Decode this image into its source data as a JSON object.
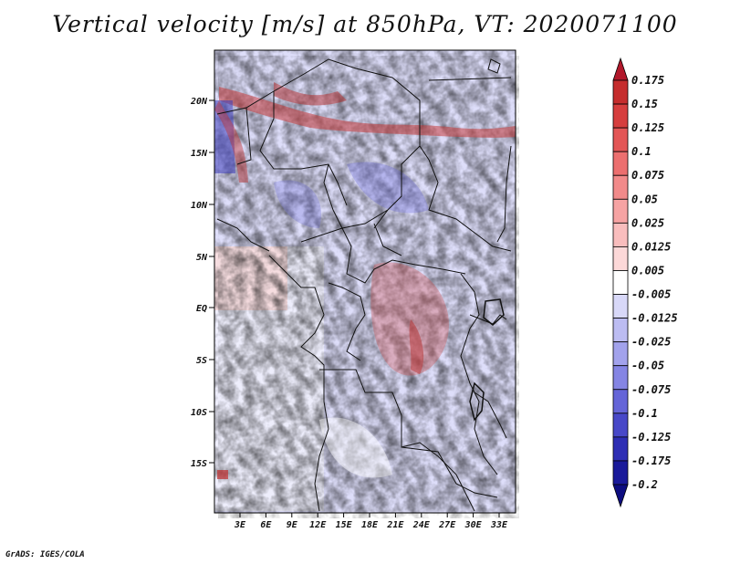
{
  "title": "Vertical velocity [m/s] at 850hPa, VT: 2020071100",
  "credit": "GrADS: IGES/COLA",
  "lat_labels": [
    "20N",
    "15N",
    "10N",
    "5N",
    "EQ",
    "5S",
    "10S",
    "15S"
  ],
  "lon_labels": [
    "3E",
    "6E",
    "9E",
    "12E",
    "15E",
    "18E",
    "21E",
    "24E",
    "27E",
    "30E",
    "33E"
  ],
  "colorbar": {
    "labels": [
      "0.175",
      "0.15",
      "0.125",
      "0.1",
      "0.075",
      "0.05",
      "0.025",
      "0.0125",
      "0.005",
      "-0.005",
      "-0.0125",
      "-0.025",
      "-0.05",
      "-0.075",
      "-0.1",
      "-0.125",
      "-0.175",
      "-0.2"
    ],
    "colors": [
      "#b2182b",
      "#c52d2d",
      "#d63e3e",
      "#e35656",
      "#ec6f6f",
      "#f28a8a",
      "#f6a3a3",
      "#f9bdbd",
      "#fcd8d8",
      "#ffffff",
      "#d8d8f8",
      "#bcbcf2",
      "#a2a2ec",
      "#8585e4",
      "#6565d8",
      "#4848c8",
      "#2e2eb4",
      "#1a1a9a",
      "#0d0d80"
    ]
  },
  "colors": {
    "positive": "#cc3333",
    "negative": "#3333cc",
    "neutral": "#ffffff"
  }
}
